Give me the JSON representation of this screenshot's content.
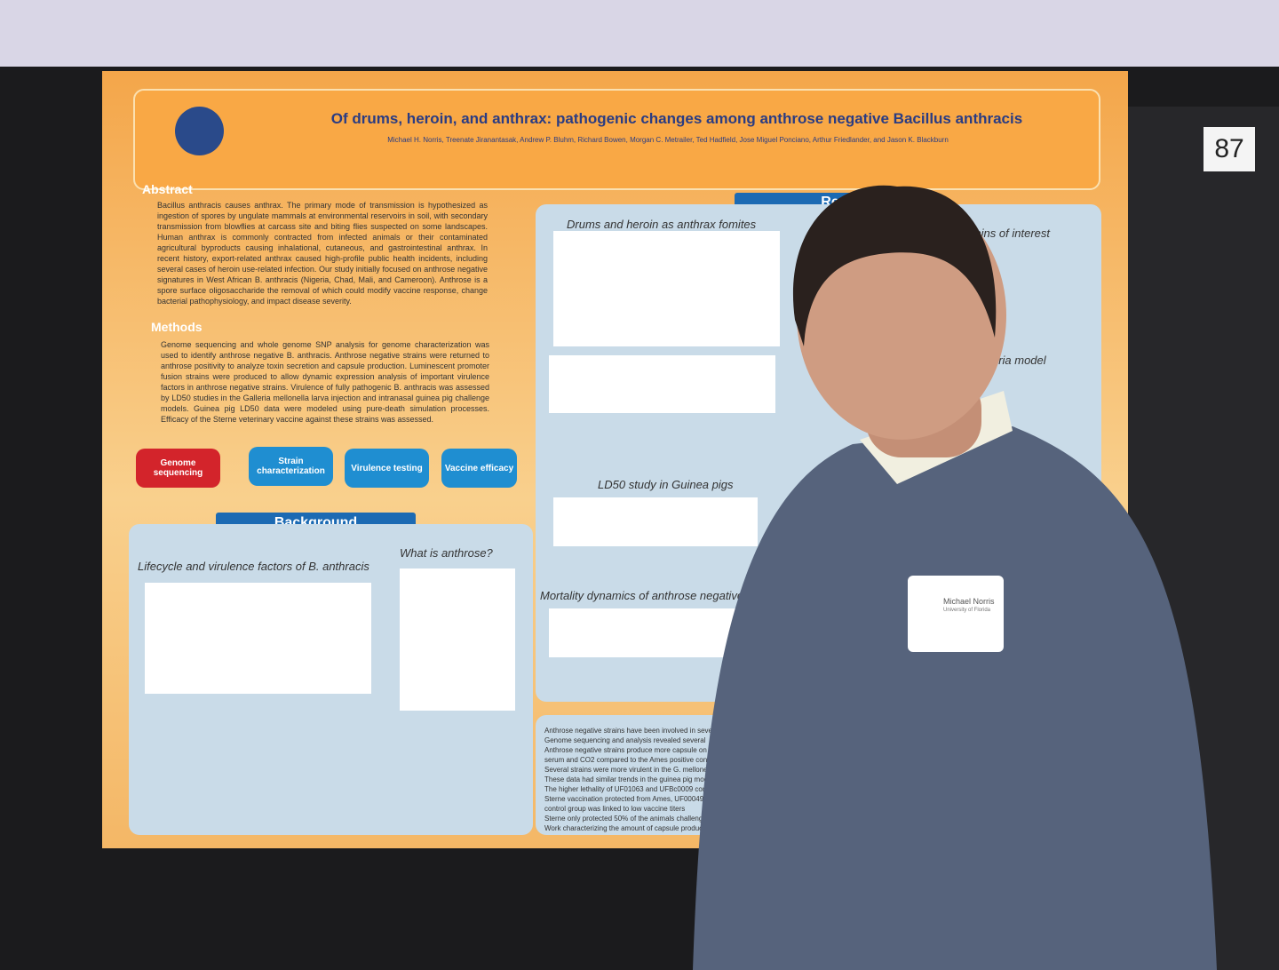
{
  "board_number": "87",
  "poster": {
    "title": "Of drums, heroin, and anthrax: pathogenic changes among anthrose negative Bacillus anthracis",
    "authors": "Michael H. Norris, Treenate Jiranantasak, Andrew P. Bluhm, Richard Bowen, Morgan C. Metrailer, Ted Hadfield, Jose Miguel Ponciano, Arthur Friedlander, and Jason K. Blackburn",
    "abstract": {
      "heading": "Abstract",
      "text": "Bacillus anthracis causes anthrax. The primary mode of transmission is hypothesized as ingestion of spores by ungulate mammals at environmental reservoirs in soil, with secondary transmission from blowflies at carcass site and biting flies suspected on some landscapes. Human anthrax is commonly contracted from infected animals or their contaminated agricultural byproducts causing inhalational, cutaneous, and gastrointestinal anthrax. In recent history, export-related anthrax caused high-profile public health incidents, including several cases of heroin use-related infection. Our study initially focused on anthrose negative signatures in West African B. anthracis (Nigeria, Chad, Mali, and Cameroon). Anthrose is a spore surface oligosaccharide the removal of which could modify vaccine response, change bacterial pathophysiology, and impact disease severity."
    },
    "methods": {
      "heading": "Methods",
      "text": "Genome sequencing and whole genome SNP analysis for genome characterization was used to identify anthrose negative B. anthracis. Anthrose negative strains were returned to anthrose positivity to analyze toxin secretion and capsule production. Luminescent promoter fusion strains were produced to allow dynamic expression analysis of important virulence factors in anthrose negative strains. Virulence of fully pathogenic B. anthracis was assessed by LD50 studies in the Galleria mellonella larva injection and intranasal guinea pig challenge models. Guinea pig LD50 data were modeled using pure-death simulation processes. Efficacy of the Sterne veterinary vaccine against these strains was assessed."
    },
    "workflow": [
      "Genome sequencing",
      "Strain characterization",
      "Virulence testing",
      "Vaccine efficacy"
    ],
    "background": {
      "heading": "Background",
      "lifecycle_title": "Lifecycle and virulence factors of B. anthracis",
      "anthrose_title": "What is anthrose?"
    },
    "results": {
      "heading": "Re",
      "fomites_title": "Drums and heroin as anthrax fomites",
      "strains_title": "strains of interest",
      "galleria_title": "e Galleria model",
      "ld50_title": "LD50 study in Guinea pigs",
      "mortality_title": "Mortality dynamics of anthrose negative"
    },
    "conclusions": [
      "Anthrose negative strains have been involved in seve",
      "Genome sequencing and analysis revealed several",
      "Anthrose negative strains produce more capsule on",
      "serum and CO2 compared to the Ames positive cont",
      "Several strains were more virulent in the G. mellone",
      "These data had similar trends in the guinea pig mod",
      "The higher lethality of UF01063 and UFBc0009 com",
      "Sterne vaccination protected from Ames, UF00049",
      "control group was linked to low vaccine titers",
      "Sterne only protected 50% of the animals challenge",
      "Work characterizing the amount of capsule produce"
    ]
  },
  "badge": {
    "name": "Michael Norris",
    "affiliation": "University of Florida"
  }
}
